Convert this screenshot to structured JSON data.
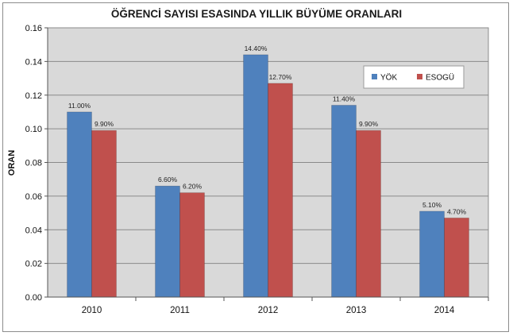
{
  "chart_data": {
    "type": "bar",
    "title": "ÖĞRENCİ SAYISI ESASINDA YILLIK BÜYÜME ORANLARI",
    "xlabel": "",
    "ylabel": "ORAN",
    "categories": [
      "2010",
      "2011",
      "2012",
      "2013",
      "2014"
    ],
    "series": [
      {
        "name": "YÖK",
        "color": "#4f81bd",
        "values": [
          0.11,
          0.066,
          0.144,
          0.114,
          0.051
        ],
        "labels": [
          "11.00%",
          "6.60%",
          "14.40%",
          "11.40%",
          "5.10%"
        ]
      },
      {
        "name": "ESOGÜ",
        "color": "#c0504d",
        "values": [
          0.099,
          0.062,
          0.127,
          0.099,
          0.047
        ],
        "labels": [
          "9.90%",
          "6.20%",
          "12.70%",
          "9.90%",
          "4.70%"
        ]
      }
    ],
    "ylim": [
      0,
      0.16
    ],
    "yticks": [
      "0.00",
      "0.02",
      "0.04",
      "0.06",
      "0.08",
      "0.10",
      "0.12",
      "0.14",
      "0.16"
    ],
    "grid": true,
    "legend_position": "top-right",
    "plot_background": "#d9d9d9"
  }
}
